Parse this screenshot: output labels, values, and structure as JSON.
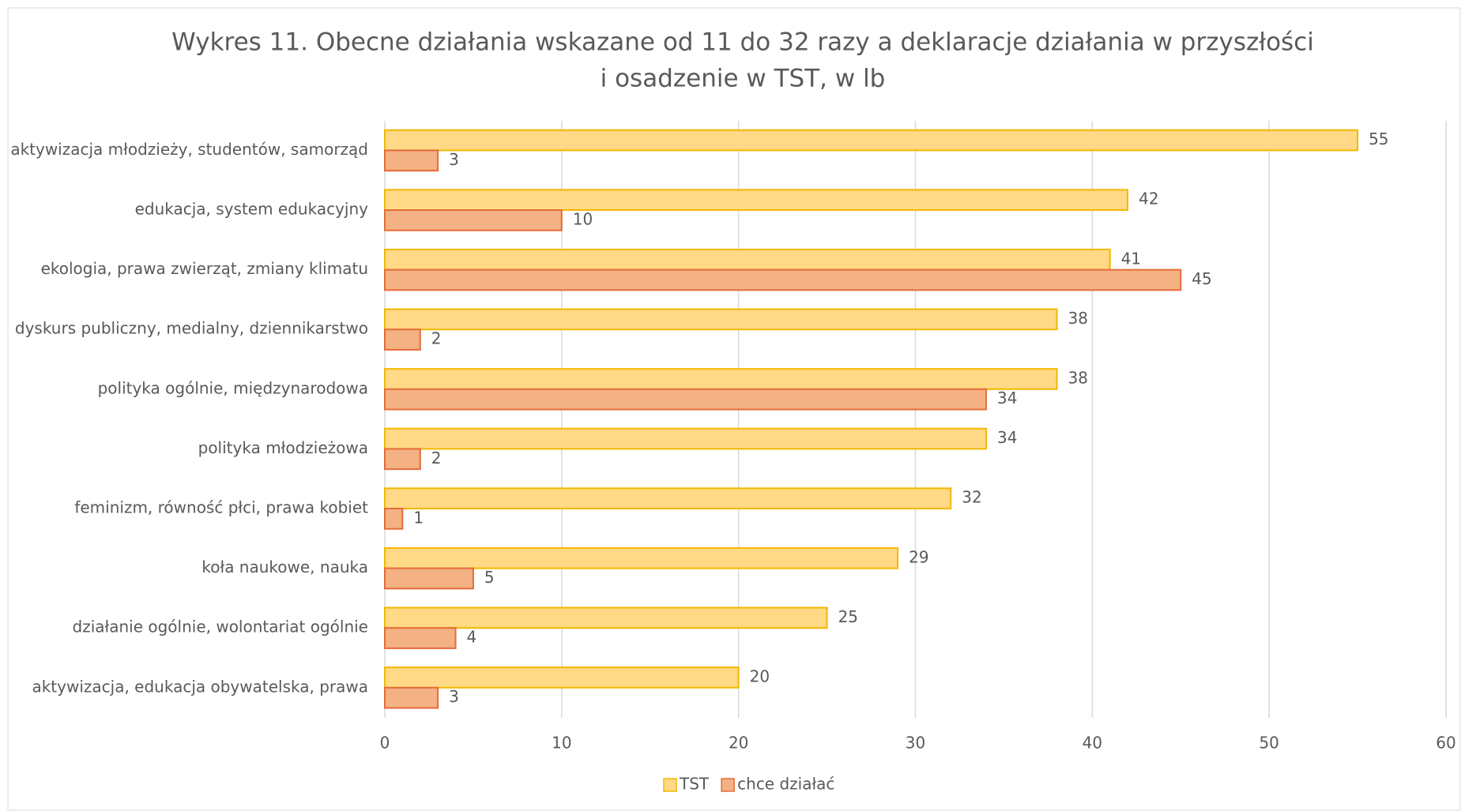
{
  "chart_data": {
    "type": "hbar",
    "title": [
      "Wykres 11. Obecne działania wskazane od 11 do 32 razy a deklaracje działania w przyszłości",
      "i osadzenie w TST, w lb"
    ],
    "categories": [
      "aktywizacja młodzieży, studentów, samorząd",
      "edukacja, system edukacyjny",
      "ekologia, prawa zwierząt, zmiany klimatu",
      "dyskurs publiczny, medialny, dziennikarstwo",
      "polityka ogólnie, międzynarodowa",
      "polityka młodzieżowa",
      "feminizm, równość płci, prawa kobiet",
      "koła naukowe, nauka",
      "działanie ogólnie, wolontariat ogólnie",
      "aktywizacja, edukacja obywatelska, prawa"
    ],
    "series": [
      {
        "name": "TST",
        "color": "#FFD986",
        "values": [
          55,
          42,
          41,
          38,
          38,
          34,
          32,
          29,
          25,
          20
        ]
      },
      {
        "name": "chce działać",
        "color": "#F4B183",
        "values": [
          3,
          10,
          45,
          2,
          34,
          2,
          1,
          5,
          4,
          3
        ]
      }
    ],
    "xlim": [
      0,
      60
    ],
    "xticks": [
      0,
      10,
      20,
      30,
      40,
      50,
      60
    ],
    "grid": true,
    "legend": "bottom"
  }
}
